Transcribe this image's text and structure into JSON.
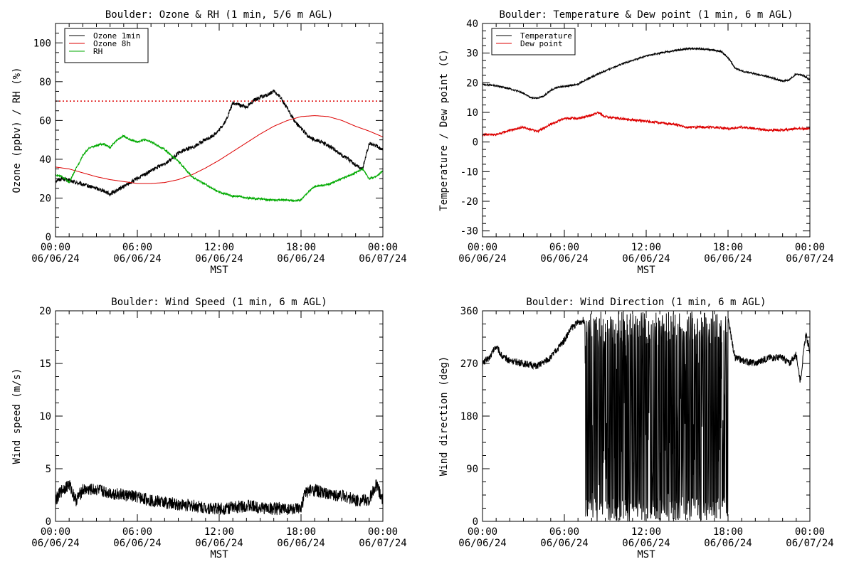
{
  "figure": {
    "charts": [
      {
        "title": "Boulder: Ozone & RH (1 min, 5/6 m AGL)",
        "ylabel": "Ozone (ppbv) / RH (%)",
        "xlabel": "MST"
      },
      {
        "title": "Boulder: Temperature & Dew point (1 min, 6 m AGL)",
        "ylabel": "Temperature / Dew point (C)",
        "xlabel": "MST"
      },
      {
        "title": "Boulder: Wind Speed (1 min, 6 m AGL)",
        "ylabel": "Wind speed (m/s)",
        "xlabel": "MST"
      },
      {
        "title": "Boulder: Wind Direction (1 min, 6 m AGL)",
        "ylabel": "Wind direction (deg)",
        "xlabel": "MST"
      }
    ]
  },
  "chart_data": [
    {
      "type": "line",
      "title": "Boulder: Ozone & RH (1 min, 5/6 m AGL)",
      "xlabel": "MST",
      "ylabel": "Ozone (ppbv) / RH (%)",
      "xlim": [
        0,
        24
      ],
      "ylim": [
        0,
        110
      ],
      "xticks": [
        0,
        6,
        12,
        18,
        24
      ],
      "xtick_time_labels": [
        "00:00",
        "06:00",
        "12:00",
        "18:00",
        "00:00"
      ],
      "xtick_date_labels": [
        "06/06/24",
        "06/06/24",
        "06/06/24",
        "06/06/24",
        "06/07/24"
      ],
      "yticks": [
        0,
        20,
        40,
        60,
        80,
        100
      ],
      "ytick_labels": [
        "0",
        "20",
        "40",
        "60",
        "80",
        "100"
      ],
      "legend_position": "top-left",
      "reference_lines": [
        {
          "y": 70,
          "color": "#dd0000",
          "style": "dotted"
        }
      ],
      "series": [
        {
          "name": "Ozone 1min",
          "color": "#000000",
          "noise": 1.0,
          "x": [
            0,
            0.5,
            1,
            1.5,
            2,
            2.5,
            3,
            3.5,
            4,
            4.5,
            5,
            5.5,
            6,
            6.5,
            7,
            7.5,
            8,
            8.5,
            9,
            9.5,
            10,
            10.5,
            11,
            11.5,
            12,
            12.5,
            13,
            13.5,
            14,
            14.5,
            15,
            15.5,
            16,
            16.5,
            17,
            17.5,
            18,
            18.5,
            19,
            19.5,
            20,
            20.5,
            21,
            21.5,
            22,
            22.5,
            23,
            23.5,
            24
          ],
          "y": [
            29,
            30,
            29,
            28,
            27,
            26,
            25,
            24,
            22,
            24,
            26,
            28,
            30,
            32,
            34,
            36,
            38,
            40,
            43,
            45,
            46,
            48,
            50,
            52,
            55,
            60,
            69,
            68,
            67,
            70,
            72,
            73,
            75,
            72,
            66,
            60,
            56,
            52,
            50,
            49,
            47,
            45,
            42,
            40,
            37,
            35,
            48,
            47,
            45
          ]
        },
        {
          "name": "Ozone 8h",
          "color": "#dd0000",
          "noise": 0,
          "x": [
            0,
            1,
            2,
            3,
            4,
            5,
            6,
            7,
            8,
            9,
            10,
            11,
            12,
            13,
            14,
            15,
            16,
            17,
            18,
            19,
            20,
            21,
            22,
            23,
            24
          ],
          "y": [
            36,
            35,
            33,
            31,
            29.5,
            28.5,
            27.5,
            27.5,
            28,
            29.5,
            32,
            35.5,
            39.5,
            44,
            48.5,
            53,
            57,
            60,
            62,
            62.5,
            62,
            60,
            57,
            54.5,
            51.5
          ]
        },
        {
          "name": "RH",
          "color": "#00aa00",
          "noise": 0.5,
          "x": [
            0,
            0.5,
            1,
            1.5,
            2,
            2.5,
            3,
            3.5,
            4,
            4.5,
            5,
            5.5,
            6,
            6.5,
            7,
            7.5,
            8,
            8.5,
            9,
            9.5,
            10,
            10.5,
            11,
            11.5,
            12,
            12.5,
            13,
            13.5,
            14,
            15,
            16,
            17,
            17.5,
            18,
            18.5,
            19,
            20,
            21,
            22,
            22.5,
            23,
            23.5,
            24
          ],
          "y": [
            32,
            31,
            28,
            35,
            42,
            46,
            47,
            48,
            46,
            50,
            52,
            50,
            49,
            50,
            49,
            47,
            45,
            42,
            39,
            35,
            31,
            29,
            27,
            25,
            23,
            22,
            21,
            21,
            20,
            19.5,
            19,
            19,
            18.5,
            19,
            23,
            26,
            27,
            30,
            33,
            35,
            30,
            31,
            34
          ]
        }
      ]
    },
    {
      "type": "line",
      "title": "Boulder: Temperature & Dew point (1 min, 6 m AGL)",
      "xlabel": "MST",
      "ylabel": "Temperature / Dew point (C)",
      "xlim": [
        0,
        24
      ],
      "ylim": [
        -32,
        40
      ],
      "xticks": [
        0,
        6,
        12,
        18,
        24
      ],
      "xtick_time_labels": [
        "00:00",
        "06:00",
        "12:00",
        "18:00",
        "00:00"
      ],
      "xtick_date_labels": [
        "06/06/24",
        "06/06/24",
        "06/06/24",
        "06/06/24",
        "06/07/24"
      ],
      "yticks": [
        -30,
        -20,
        -10,
        0,
        10,
        20,
        30,
        40
      ],
      "ytick_labels": [
        "-30",
        "-20",
        "-10",
        "0",
        "10",
        "20",
        "30",
        "40"
      ],
      "legend_position": "top-left",
      "series": [
        {
          "name": "Temperature",
          "color": "#000000",
          "noise": 0.3,
          "x": [
            0,
            1,
            2,
            3,
            3.5,
            4,
            4.5,
            5,
            5.5,
            6,
            7,
            8,
            9,
            10,
            11,
            12,
            13,
            14,
            15,
            16,
            17,
            17.5,
            18,
            18.5,
            19,
            20,
            21,
            22,
            22.5,
            23,
            23.5,
            24
          ],
          "y": [
            19.5,
            19,
            18,
            16.5,
            15,
            14.8,
            15.5,
            17.5,
            18.5,
            18.8,
            19.5,
            22,
            24,
            26,
            27.5,
            29,
            30,
            30.8,
            31.5,
            31.5,
            31,
            30.5,
            28.5,
            25,
            24,
            23,
            22,
            20.5,
            21,
            23,
            22.5,
            21
          ]
        },
        {
          "name": "Dew point",
          "color": "#dd0000",
          "noise": 0.4,
          "x": [
            0,
            1,
            2,
            3,
            4,
            5,
            6,
            7,
            8,
            8.5,
            9,
            10,
            11,
            12,
            13,
            14,
            15,
            16,
            17,
            18,
            19,
            20,
            21,
            22,
            23,
            24
          ],
          "y": [
            2.5,
            2.5,
            4,
            5,
            3.5,
            6,
            8,
            8,
            9,
            10,
            8.5,
            8,
            7.5,
            7,
            6.5,
            6,
            5,
            5,
            5,
            4.5,
            5,
            4.5,
            4,
            4,
            4.5,
            4.5
          ]
        }
      ]
    },
    {
      "type": "line",
      "title": "Boulder: Wind Speed (1 min, 6 m AGL)",
      "xlabel": "MST",
      "ylabel": "Wind speed (m/s)",
      "xlim": [
        0,
        24
      ],
      "ylim": [
        0,
        20
      ],
      "xticks": [
        0,
        6,
        12,
        18,
        24
      ],
      "xtick_time_labels": [
        "00:00",
        "06:00",
        "12:00",
        "18:00",
        "00:00"
      ],
      "xtick_date_labels": [
        "06/06/24",
        "06/06/24",
        "06/06/24",
        "06/06/24",
        "06/07/24"
      ],
      "yticks": [
        0,
        5,
        10,
        15,
        20
      ],
      "ytick_labels": [
        "0",
        "5",
        "10",
        "15",
        "20"
      ],
      "series": [
        {
          "name": "",
          "color": "#000000",
          "noise": 0.6,
          "x": [
            0,
            0.5,
            1,
            1.5,
            2,
            3,
            4,
            5,
            6,
            7,
            8,
            9,
            10,
            11,
            12,
            13,
            14,
            15,
            16,
            17,
            18,
            18.3,
            19,
            20,
            21,
            22,
            23,
            23.5,
            24
          ],
          "y": [
            2,
            3,
            3.5,
            2,
            3,
            3,
            2.7,
            2.5,
            2.3,
            2,
            1.8,
            1.6,
            1.5,
            1.3,
            1.2,
            1.3,
            1.5,
            1.3,
            1.2,
            1.2,
            1.1,
            2.8,
            3,
            2.5,
            2.5,
            2,
            2,
            3.5,
            2
          ]
        }
      ]
    },
    {
      "type": "line",
      "title": "Boulder: Wind Direction (1 min, 6 m AGL)",
      "xlabel": "MST",
      "ylabel": "Wind direction (deg)",
      "xlim": [
        0,
        24
      ],
      "ylim": [
        0,
        360
      ],
      "xticks": [
        0,
        6,
        12,
        18,
        24
      ],
      "xtick_time_labels": [
        "00:00",
        "06:00",
        "12:00",
        "18:00",
        "00:00"
      ],
      "xtick_date_labels": [
        "06/06/24",
        "06/06/24",
        "06/06/24",
        "06/06/24",
        "06/07/24"
      ],
      "yticks": [
        0,
        90,
        180,
        270,
        360
      ],
      "ytick_labels": [
        "0",
        "90",
        "180",
        "270",
        "360"
      ],
      "series": [
        {
          "name": "",
          "color": "#000000",
          "noise": 6,
          "x": [
            0,
            0.5,
            1,
            1.5,
            2,
            3,
            4,
            5,
            6,
            6.5,
            7,
            7.5,
            18,
            18.5,
            19,
            20,
            21,
            22,
            22.5,
            23,
            23.3,
            23.7,
            24
          ],
          "y": [
            270,
            280,
            300,
            280,
            275,
            270,
            265,
            280,
            310,
            330,
            340,
            345,
            345,
            280,
            275,
            270,
            280,
            280,
            270,
            285,
            240,
            320,
            290
          ],
          "wrap_region": [
            7.5,
            18
          ]
        }
      ]
    }
  ]
}
